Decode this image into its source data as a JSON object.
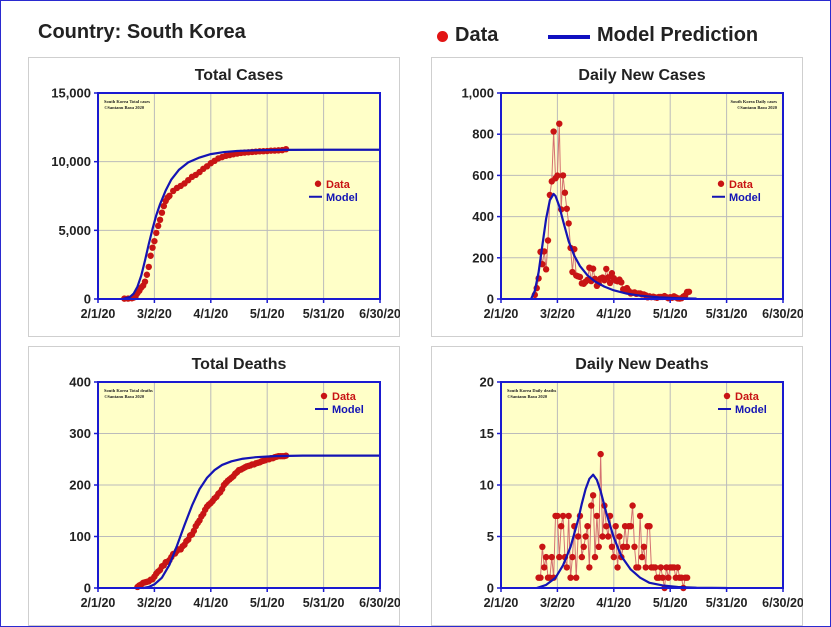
{
  "header": {
    "country": "Country: South Korea",
    "legend_data": "Data",
    "legend_model": "Model Prediction"
  },
  "colors": {
    "data": "#c81414",
    "model": "#1414b4",
    "plot_bg": "#ffffc8",
    "axis": "#1a1ad0",
    "grid": "#bbbbbb"
  },
  "chart_data": [
    {
      "type": "scatter",
      "title": "Total Cases",
      "note_lines": [
        "South Korea Total cases",
        "©Santanu Basu 2020"
      ],
      "legend": [
        "Data",
        "Model"
      ],
      "legend_position": "right",
      "x_ticks": [
        "2/1/20",
        "3/2/20",
        "4/1/20",
        "5/1/20",
        "5/31/20",
        "6/30/20"
      ],
      "x_range": [
        "2/1/20",
        "6/30/20"
      ],
      "y_ticks": [
        "0",
        "5,000",
        "10,000",
        "15,000"
      ],
      "ylim": [
        0,
        15000
      ],
      "connect_points": false,
      "series": [
        {
          "name": "Data",
          "x": [
            "2/15/20",
            "2/17/20",
            "2/19/20",
            "2/20/20",
            "2/21/20",
            "2/22/20",
            "2/23/20",
            "2/24/20",
            "2/25/20",
            "2/26/20",
            "2/27/20",
            "2/28/20",
            "2/29/20",
            "3/1/20",
            "3/2/20",
            "3/3/20",
            "3/4/20",
            "3/5/20",
            "3/6/20",
            "3/7/20",
            "3/8/20",
            "3/9/20",
            "3/10/20",
            "3/12/20",
            "3/14/20",
            "3/16/20",
            "3/18/20",
            "3/20/20",
            "3/22/20",
            "3/24/20",
            "3/26/20",
            "3/28/20",
            "3/30/20",
            "4/1/20",
            "4/3/20",
            "4/5/20",
            "4/7/20",
            "4/9/20",
            "4/11/20",
            "4/13/20",
            "4/15/20",
            "4/17/20",
            "4/19/20",
            "4/21/20",
            "4/23/20",
            "4/25/20",
            "4/27/20",
            "4/29/20",
            "5/1/20",
            "5/3/20",
            "5/5/20",
            "5/7/20",
            "5/9/20",
            "5/11/20"
          ],
          "y": [
            28,
            30,
            51,
            104,
            204,
            433,
            602,
            833,
            977,
            1261,
            1766,
            2337,
            3150,
            3736,
            4212,
            4812,
            5328,
            5766,
            6284,
            6767,
            7134,
            7382,
            7513,
            7869,
            8086,
            8236,
            8413,
            8652,
            8897,
            9037,
            9241,
            9478,
            9661,
            9887,
            10062,
            10237,
            10331,
            10423,
            10480,
            10537,
            10591,
            10635,
            10661,
            10683,
            10708,
            10728,
            10752,
            10761,
            10774,
            10801,
            10806,
            10822,
            10840,
            10909
          ]
        },
        {
          "name": "Model",
          "x": [
            "2/14/20",
            "2/18/20",
            "2/20/20",
            "2/22/20",
            "2/24/20",
            "2/26/20",
            "2/28/20",
            "3/1/20",
            "3/3/20",
            "3/5/20",
            "3/8/20",
            "3/11/20",
            "3/15/20",
            "3/20/20",
            "3/26/20",
            "4/1/20",
            "4/8/20",
            "4/15/20",
            "4/25/20",
            "5/10/20",
            "5/31/20",
            "6/30/20"
          ],
          "y": [
            0,
            150,
            400,
            900,
            1700,
            2800,
            4000,
            5100,
            6100,
            6900,
            7900,
            8700,
            9400,
            9950,
            10300,
            10550,
            10700,
            10780,
            10830,
            10860,
            10870,
            10870
          ]
        }
      ]
    },
    {
      "type": "scatter",
      "title": "Daily New Cases",
      "note_lines": [
        "South Korea Daily cases",
        "©Santanu Basu 2020"
      ],
      "legend": [
        "Data",
        "Model"
      ],
      "legend_position": "right",
      "x_ticks": [
        "2/1/20",
        "3/2/20",
        "4/1/20",
        "5/1/20",
        "5/31/20",
        "6/30/20"
      ],
      "x_range": [
        "2/1/20",
        "6/30/20"
      ],
      "y_ticks": [
        "0",
        "200",
        "400",
        "600",
        "800",
        "1,000"
      ],
      "ylim": [
        0,
        1000
      ],
      "connect_points": true,
      "series": [
        {
          "name": "Data",
          "x": [
            "2/19/20",
            "2/20/20",
            "2/21/20",
            "2/22/20",
            "2/23/20",
            "2/24/20",
            "2/25/20",
            "2/26/20",
            "2/27/20",
            "2/28/20",
            "2/29/20",
            "3/1/20",
            "3/2/20",
            "3/3/20",
            "3/4/20",
            "3/5/20",
            "3/6/20",
            "3/7/20",
            "3/8/20",
            "3/9/20",
            "3/10/20",
            "3/11/20",
            "3/12/20",
            "3/13/20",
            "3/14/20",
            "3/15/20",
            "3/16/20",
            "3/17/20",
            "3/18/20",
            "3/19/20",
            "3/20/20",
            "3/21/20",
            "3/22/20",
            "3/23/20",
            "3/24/20",
            "3/25/20",
            "3/26/20",
            "3/27/20",
            "3/28/20",
            "3/29/20",
            "3/30/20",
            "3/31/20",
            "4/1/20",
            "4/2/20",
            "4/3/20",
            "4/4/20",
            "4/5/20",
            "4/6/20",
            "4/7/20",
            "4/8/20",
            "4/9/20",
            "4/10/20",
            "4/11/20",
            "4/12/20",
            "4/13/20",
            "4/14/20",
            "4/15/20",
            "4/16/20",
            "4/17/20",
            "4/18/20",
            "4/19/20",
            "4/20/20",
            "4/21/20",
            "4/22/20",
            "4/23/20",
            "4/24/20",
            "4/25/20",
            "4/26/20",
            "4/27/20",
            "4/28/20",
            "4/29/20",
            "4/30/20",
            "5/1/20",
            "5/2/20",
            "5/3/20",
            "5/4/20",
            "5/5/20",
            "5/6/20",
            "5/7/20",
            "5/8/20",
            "5/9/20",
            "5/10/20",
            "5/11/20"
          ],
          "y": [
            20,
            53,
            100,
            229,
            169,
            231,
            144,
            284,
            505,
            571,
            813,
            586,
            599,
            851,
            435,
            600,
            516,
            438,
            367,
            248,
            131,
            242,
            114,
            110,
            107,
            76,
            74,
            84,
            93,
            152,
            87,
            147,
            98,
            64,
            76,
            100,
            104,
            91,
            146,
            105,
            78,
            125,
            101,
            89,
            86,
            94,
            81,
            47,
            47,
            53,
            39,
            27,
            30,
            32,
            25,
            27,
            27,
            22,
            22,
            18,
            8,
            13,
            9,
            11,
            8,
            6,
            10,
            10,
            10,
            14,
            9,
            4,
            9,
            6,
            13,
            8,
            3,
            2,
            4,
            12,
            18,
            34,
            35
          ]
        },
        {
          "name": "Model",
          "x": [
            "2/17/20",
            "2/19/20",
            "2/21/20",
            "2/23/20",
            "2/25/20",
            "2/27/20",
            "2/29/20",
            "3/1/20",
            "3/3/20",
            "3/5/20",
            "3/8/20",
            "3/11/20",
            "3/14/20",
            "3/18/20",
            "3/22/20",
            "3/27/20",
            "4/1/20",
            "4/8/20",
            "4/15/20",
            "4/25/20",
            "5/5/20",
            "5/15/20"
          ],
          "y": [
            0,
            40,
            130,
            260,
            390,
            480,
            510,
            500,
            450,
            380,
            280,
            210,
            160,
            115,
            85,
            60,
            42,
            26,
            16,
            8,
            4,
            2
          ]
        }
      ]
    },
    {
      "type": "scatter",
      "title": "Total Deaths",
      "note_lines": [
        "South Korea Total deaths",
        "©Santanu Basu 2020"
      ],
      "legend": [
        "Data",
        "Model"
      ],
      "legend_position": "top-right",
      "x_ticks": [
        "2/1/20",
        "3/2/20",
        "4/1/20",
        "5/1/20",
        "5/31/20",
        "6/30/20"
      ],
      "x_range": [
        "2/1/20",
        "6/30/20"
      ],
      "y_ticks": [
        "0",
        "100",
        "200",
        "300",
        "400"
      ],
      "ylim": [
        0,
        400
      ],
      "connect_points": false,
      "series": [
        {
          "name": "Data",
          "x": [
            "2/22/20",
            "2/23/20",
            "2/24/20",
            "2/25/20",
            "2/26/20",
            "2/27/20",
            "2/28/20",
            "2/29/20",
            "3/1/20",
            "3/2/20",
            "3/3/20",
            "3/4/20",
            "3/5/20",
            "3/6/20",
            "3/7/20",
            "3/8/20",
            "3/9/20",
            "3/10/20",
            "3/11/20",
            "3/12/20",
            "3/13/20",
            "3/14/20",
            "3/15/20",
            "3/16/20",
            "3/17/20",
            "3/18/20",
            "3/19/20",
            "3/20/20",
            "3/21/20",
            "3/22/20",
            "3/23/20",
            "3/24/20",
            "3/25/20",
            "3/26/20",
            "3/27/20",
            "3/28/20",
            "3/29/20",
            "3/30/20",
            "3/31/20",
            "4/1/20",
            "4/2/20",
            "4/3/20",
            "4/4/20",
            "4/5/20",
            "4/6/20",
            "4/7/20",
            "4/8/20",
            "4/9/20",
            "4/10/20",
            "4/11/20",
            "4/12/20",
            "4/13/20",
            "4/14/20",
            "4/15/20",
            "4/16/20",
            "4/17/20",
            "4/18/20",
            "4/19/20",
            "4/20/20",
            "4/21/20",
            "4/22/20",
            "4/23/20",
            "4/24/20",
            "4/25/20",
            "4/26/20",
            "4/27/20",
            "4/28/20",
            "4/29/20",
            "4/30/20",
            "5/1/20",
            "5/2/20",
            "5/3/20",
            "5/4/20",
            "5/5/20",
            "5/6/20",
            "5/7/20",
            "5/8/20",
            "5/9/20",
            "5/10/20",
            "5/11/20"
          ],
          "y": [
            2,
            5,
            7,
            10,
            11,
            12,
            13,
            16,
            17,
            22,
            28,
            32,
            35,
            42,
            44,
            50,
            51,
            54,
            60,
            66,
            67,
            72,
            75,
            75,
            81,
            84,
            91,
            94,
            102,
            104,
            111,
            120,
            126,
            131,
            139,
            144,
            152,
            158,
            162,
            165,
            169,
            174,
            177,
            183,
            186,
            192,
            200,
            204,
            208,
            211,
            214,
            217,
            222,
            225,
            229,
            230,
            232,
            234,
            236,
            237,
            238,
            240,
            240,
            242,
            243,
            244,
            246,
            247,
            248,
            250,
            250,
            252,
            252,
            254,
            255,
            256,
            256,
            256,
            256,
            257
          ]
        },
        {
          "name": "Model",
          "x": [
            "2/25/20",
            "2/28/20",
            "3/2/20",
            "3/6/20",
            "3/10/20",
            "3/14/20",
            "3/18/20",
            "3/22/20",
            "3/26/20",
            "3/30/20",
            "4/3/20",
            "4/7/20",
            "4/12/20",
            "4/18/20",
            "4/25/20",
            "5/5/20",
            "5/20/20",
            "6/30/20"
          ],
          "y": [
            0,
            2,
            7,
            20,
            45,
            82,
            122,
            160,
            192,
            214,
            229,
            239,
            246,
            251,
            254,
            256,
            257,
            257
          ]
        }
      ]
    },
    {
      "type": "scatter",
      "title": "Daily New Deaths",
      "note_lines": [
        "South Korea Daily deaths",
        "©Santanu Basu 2020"
      ],
      "legend": [
        "Data",
        "Model"
      ],
      "legend_position": "top-right",
      "x_ticks": [
        "2/1/20",
        "3/2/20",
        "4/1/20",
        "5/1/20",
        "5/31/20",
        "6/30/20"
      ],
      "x_range": [
        "2/1/20",
        "6/30/20"
      ],
      "y_ticks": [
        "0",
        "5",
        "10",
        "15",
        "20"
      ],
      "ylim": [
        0,
        20
      ],
      "connect_points": true,
      "series": [
        {
          "name": "Data",
          "x": [
            "2/21/20",
            "2/22/20",
            "2/23/20",
            "2/24/20",
            "2/25/20",
            "2/26/20",
            "2/27/20",
            "2/28/20",
            "2/29/20",
            "3/1/20",
            "3/2/20",
            "3/3/20",
            "3/4/20",
            "3/5/20",
            "3/6/20",
            "3/7/20",
            "3/8/20",
            "3/9/20",
            "3/10/20",
            "3/11/20",
            "3/12/20",
            "3/13/20",
            "3/14/20",
            "3/15/20",
            "3/16/20",
            "3/17/20",
            "3/18/20",
            "3/19/20",
            "3/20/20",
            "3/21/20",
            "3/22/20",
            "3/23/20",
            "3/24/20",
            "3/25/20",
            "3/26/20",
            "3/27/20",
            "3/28/20",
            "3/29/20",
            "3/30/20",
            "3/31/20",
            "4/1/20",
            "4/2/20",
            "4/3/20",
            "4/4/20",
            "4/5/20",
            "4/6/20",
            "4/7/20",
            "4/8/20",
            "4/9/20",
            "4/10/20",
            "4/11/20",
            "4/12/20",
            "4/13/20",
            "4/14/20",
            "4/15/20",
            "4/16/20",
            "4/17/20",
            "4/18/20",
            "4/19/20",
            "4/20/20",
            "4/21/20",
            "4/22/20",
            "4/23/20",
            "4/24/20",
            "4/25/20",
            "4/26/20",
            "4/27/20",
            "4/28/20",
            "4/29/20",
            "4/30/20",
            "5/1/20",
            "5/2/20",
            "5/3/20",
            "5/4/20",
            "5/5/20",
            "5/6/20",
            "5/7/20",
            "5/8/20",
            "5/9/20",
            "5/10/20"
          ],
          "y": [
            1,
            1,
            4,
            2,
            3,
            1,
            1,
            3,
            1,
            7,
            7,
            3,
            6,
            7,
            3,
            2,
            7,
            1,
            3,
            6,
            1,
            5,
            7,
            3,
            4,
            5,
            6,
            2,
            8,
            9,
            3,
            7,
            4,
            13,
            5,
            8,
            6,
            5,
            7,
            4,
            3,
            6,
            2,
            5,
            3,
            4,
            6,
            4,
            6,
            6,
            8,
            4,
            2,
            2,
            7,
            3,
            4,
            2,
            6,
            6,
            2,
            2,
            2,
            1,
            1,
            2,
            1,
            0,
            2,
            1,
            2,
            2,
            2,
            1,
            2,
            1,
            1,
            0,
            1,
            1
          ]
        },
        {
          "name": "Model",
          "x": [
            "2/20/20",
            "2/25/20",
            "3/1/20",
            "3/5/20",
            "3/9/20",
            "3/13/20",
            "3/15/20",
            "3/17/20",
            "3/19/20",
            "3/21/20",
            "3/23/20",
            "3/25/20",
            "3/28/20",
            "4/1/20",
            "4/5/20",
            "4/10/20",
            "4/15/20",
            "4/20/20",
            "4/27/20",
            "5/5/20",
            "5/15/20",
            "5/31/20"
          ],
          "y": [
            0,
            0.3,
            1.0,
            2.2,
            4.0,
            6.6,
            8.2,
            9.6,
            10.6,
            11.0,
            10.5,
            9.4,
            7.3,
            4.9,
            3.1,
            1.8,
            1.0,
            0.5,
            0.25,
            0.1,
            0.03,
            0
          ]
        }
      ]
    }
  ]
}
